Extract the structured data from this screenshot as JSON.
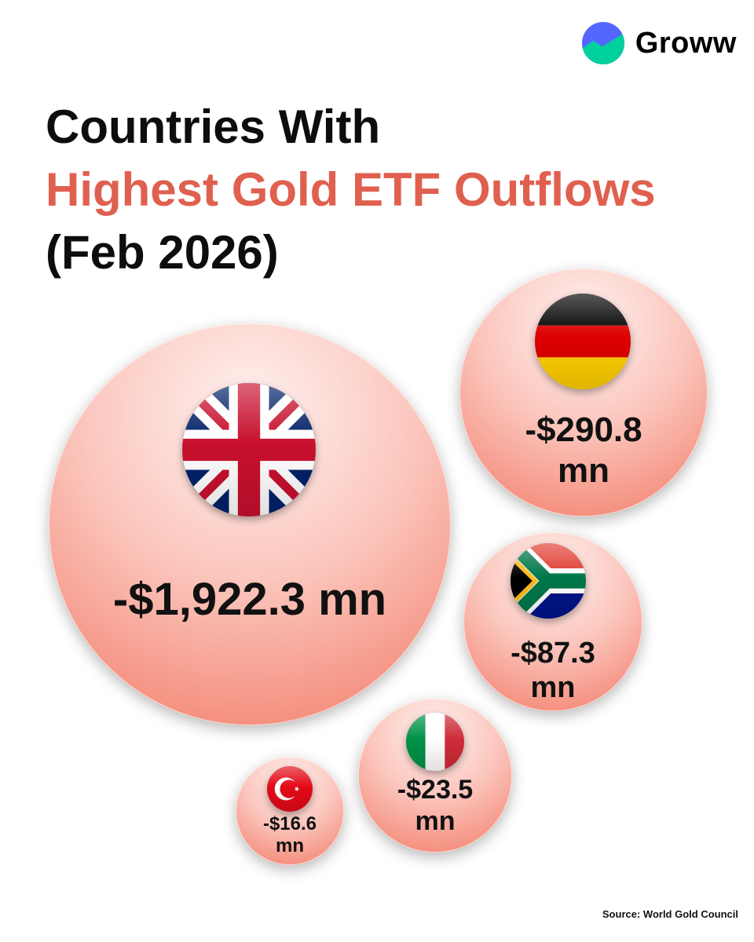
{
  "brand": {
    "name": "Groww",
    "colors": {
      "blue": "#5367ff",
      "green": "#00d09c"
    }
  },
  "title": {
    "line1": "Countries With",
    "line2": "Highest Gold ETF Outflows",
    "line3": "(Feb 2026)",
    "accent_color": "#e0604f"
  },
  "chart_data": {
    "type": "bubble",
    "unit": "mn",
    "series": [
      {
        "country": "United Kingdom",
        "flag": "uk-flag-icon",
        "value": -1922.3,
        "label": "-$1,922.3 mn"
      },
      {
        "country": "Germany",
        "flag": "germany-flag-icon",
        "value": -290.8,
        "label_line1": "-$290.8",
        "label_line2": "mn"
      },
      {
        "country": "South Africa",
        "flag": "south-africa-flag-icon",
        "value": -87.3,
        "label_line1": "-$87.3",
        "label_line2": "mn"
      },
      {
        "country": "Italy",
        "flag": "italy-flag-icon",
        "value": -23.5,
        "label_line1": "-$23.5",
        "label_line2": "mn"
      },
      {
        "country": "Turkey",
        "flag": "turkey-flag-icon",
        "value": -16.6,
        "label_line1": "-$16.6",
        "label_line2": "mn"
      }
    ]
  },
  "source": "Source: World Gold Council"
}
